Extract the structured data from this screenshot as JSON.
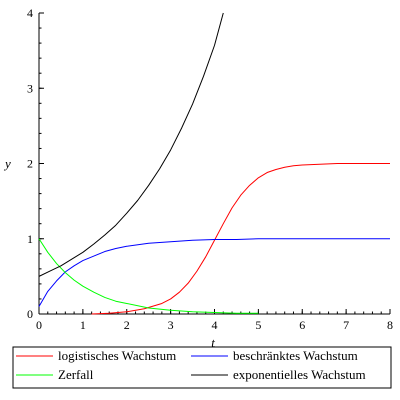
{
  "chart_data": {
    "type": "line",
    "xlabel": "t",
    "ylabel": "y",
    "xlim": [
      0,
      8
    ],
    "ylim": [
      0,
      4
    ],
    "x_ticks": [
      "0",
      "1",
      "2",
      "3",
      "4",
      "5",
      "6",
      "7",
      "8"
    ],
    "y_ticks": [
      "0",
      "1",
      "2",
      "3",
      "4"
    ],
    "grid": false,
    "legend_position": "bottom",
    "series": [
      {
        "name": "logistisches Wachstum",
        "color": "#ff0000",
        "x": [
          1.2,
          1.6,
          2.0,
          2.4,
          2.8,
          3.0,
          3.2,
          3.4,
          3.6,
          3.8,
          4.0,
          4.2,
          4.4,
          4.6,
          4.8,
          5.0,
          5.2,
          5.4,
          5.6,
          5.8,
          6.0,
          6.4,
          6.8,
          7.2,
          7.6,
          8.0
        ],
        "y": [
          0.0,
          0.01,
          0.03,
          0.07,
          0.14,
          0.2,
          0.29,
          0.41,
          0.57,
          0.76,
          0.98,
          1.2,
          1.41,
          1.58,
          1.71,
          1.81,
          1.88,
          1.92,
          1.95,
          1.97,
          1.98,
          1.99,
          2.0,
          2.0,
          2.0,
          2.0
        ]
      },
      {
        "name": "beschränktes Wachstum",
        "color": "#0000ff",
        "x": [
          0.0,
          0.2,
          0.4,
          0.6,
          0.8,
          1.0,
          1.25,
          1.5,
          1.75,
          2.0,
          2.5,
          3.0,
          3.5,
          4.0,
          4.5,
          5.0,
          6.0,
          7.0,
          8.0
        ],
        "y": [
          0.1,
          0.3,
          0.44,
          0.56,
          0.64,
          0.71,
          0.77,
          0.83,
          0.87,
          0.9,
          0.94,
          0.96,
          0.98,
          0.99,
          0.99,
          1.0,
          1.0,
          1.0,
          1.0
        ]
      },
      {
        "name": "Zerfall",
        "color": "#00ff00",
        "x": [
          0.0,
          0.2,
          0.4,
          0.6,
          0.8,
          1.0,
          1.25,
          1.5,
          1.75,
          2.0,
          2.5,
          3.0,
          3.5,
          4.0,
          4.5,
          5.0
        ],
        "y": [
          1.0,
          0.82,
          0.67,
          0.55,
          0.45,
          0.37,
          0.29,
          0.22,
          0.17,
          0.14,
          0.08,
          0.05,
          0.03,
          0.02,
          0.01,
          0.01
        ]
      },
      {
        "name": "exponentielles Wachstum",
        "color": "#000000",
        "x": [
          0.0,
          0.25,
          0.5,
          0.75,
          1.0,
          1.25,
          1.5,
          1.75,
          2.0,
          2.25,
          2.5,
          2.75,
          3.0,
          3.25,
          3.5,
          3.75,
          4.0,
          4.2
        ],
        "y": [
          0.5,
          0.57,
          0.64,
          0.73,
          0.82,
          0.93,
          1.05,
          1.18,
          1.34,
          1.51,
          1.71,
          1.93,
          2.18,
          2.47,
          2.79,
          3.16,
          3.57,
          4.0
        ]
      }
    ]
  }
}
